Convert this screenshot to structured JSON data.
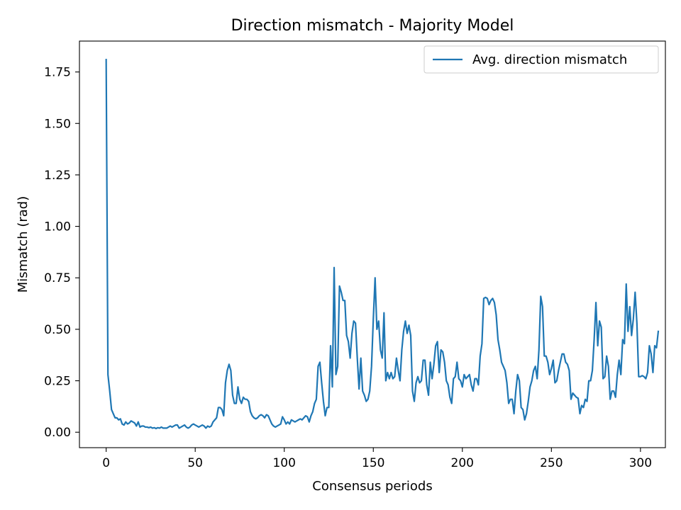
{
  "chart_data": {
    "type": "line",
    "title": "Direction mismatch - Majority Model",
    "xlabel": "Consensus periods",
    "ylabel": "Mismatch (rad)",
    "xlim": [
      -15,
      314
    ],
    "ylim": [
      -0.075,
      1.9
    ],
    "xticks": [
      0,
      50,
      100,
      150,
      200,
      250,
      300
    ],
    "xtick_labels": [
      "0",
      "50",
      "100",
      "150",
      "200",
      "250",
      "300"
    ],
    "yticks": [
      0,
      0.25,
      0.5,
      0.75,
      1.0,
      1.25,
      1.5,
      1.75
    ],
    "ytick_labels": [
      "0.00",
      "0.25",
      "0.50",
      "0.75",
      "1.00",
      "1.25",
      "1.50",
      "1.75"
    ],
    "grid": false,
    "legend": {
      "position": "top-right"
    },
    "series": [
      {
        "name": "Avg. direction mismatch",
        "color": "#1f77b4",
        "x_start": 0,
        "x_step": 1,
        "values": [
          1.81,
          0.28,
          0.2,
          0.11,
          0.09,
          0.07,
          0.07,
          0.06,
          0.065,
          0.04,
          0.035,
          0.05,
          0.04,
          0.045,
          0.055,
          0.05,
          0.045,
          0.03,
          0.05,
          0.025,
          0.03,
          0.03,
          0.025,
          0.025,
          0.022,
          0.025,
          0.02,
          0.022,
          0.018,
          0.022,
          0.02,
          0.025,
          0.02,
          0.02,
          0.02,
          0.025,
          0.03,
          0.025,
          0.03,
          0.035,
          0.035,
          0.02,
          0.025,
          0.03,
          0.035,
          0.025,
          0.02,
          0.025,
          0.035,
          0.04,
          0.035,
          0.03,
          0.025,
          0.03,
          0.035,
          0.03,
          0.02,
          0.03,
          0.025,
          0.03,
          0.05,
          0.06,
          0.07,
          0.12,
          0.12,
          0.11,
          0.08,
          0.24,
          0.3,
          0.33,
          0.3,
          0.18,
          0.14,
          0.14,
          0.22,
          0.16,
          0.14,
          0.17,
          0.16,
          0.16,
          0.15,
          0.1,
          0.08,
          0.07,
          0.065,
          0.07,
          0.08,
          0.085,
          0.08,
          0.07,
          0.085,
          0.08,
          0.06,
          0.04,
          0.03,
          0.025,
          0.03,
          0.035,
          0.04,
          0.075,
          0.06,
          0.04,
          0.05,
          0.04,
          0.06,
          0.055,
          0.05,
          0.055,
          0.06,
          0.065,
          0.06,
          0.07,
          0.08,
          0.075,
          0.05,
          0.08,
          0.1,
          0.14,
          0.16,
          0.32,
          0.34,
          0.24,
          0.15,
          0.08,
          0.12,
          0.12,
          0.42,
          0.22,
          0.8,
          0.28,
          0.32,
          0.71,
          0.68,
          0.64,
          0.64,
          0.47,
          0.44,
          0.36,
          0.48,
          0.54,
          0.53,
          0.36,
          0.21,
          0.36,
          0.2,
          0.18,
          0.15,
          0.16,
          0.2,
          0.32,
          0.55,
          0.75,
          0.5,
          0.54,
          0.4,
          0.36,
          0.58,
          0.25,
          0.29,
          0.26,
          0.29,
          0.26,
          0.27,
          0.36,
          0.3,
          0.25,
          0.4,
          0.49,
          0.54,
          0.48,
          0.52,
          0.47,
          0.2,
          0.15,
          0.24,
          0.27,
          0.24,
          0.25,
          0.35,
          0.35,
          0.23,
          0.18,
          0.34,
          0.26,
          0.33,
          0.42,
          0.44,
          0.29,
          0.4,
          0.39,
          0.34,
          0.25,
          0.23,
          0.17,
          0.14,
          0.26,
          0.27,
          0.34,
          0.26,
          0.25,
          0.22,
          0.28,
          0.26,
          0.27,
          0.28,
          0.23,
          0.2,
          0.26,
          0.26,
          0.23,
          0.37,
          0.43,
          0.65,
          0.655,
          0.65,
          0.62,
          0.64,
          0.65,
          0.63,
          0.57,
          0.45,
          0.4,
          0.34,
          0.32,
          0.3,
          0.24,
          0.14,
          0.16,
          0.16,
          0.09,
          0.2,
          0.28,
          0.25,
          0.12,
          0.11,
          0.06,
          0.09,
          0.15,
          0.22,
          0.25,
          0.3,
          0.32,
          0.26,
          0.4,
          0.66,
          0.61,
          0.37,
          0.37,
          0.34,
          0.28,
          0.31,
          0.35,
          0.24,
          0.25,
          0.3,
          0.34,
          0.38,
          0.38,
          0.34,
          0.33,
          0.3,
          0.16,
          0.19,
          0.18,
          0.17,
          0.165,
          0.09,
          0.13,
          0.12,
          0.16,
          0.15,
          0.25,
          0.25,
          0.3,
          0.45,
          0.63,
          0.42,
          0.54,
          0.51,
          0.26,
          0.27,
          0.37,
          0.32,
          0.16,
          0.2,
          0.2,
          0.17,
          0.28,
          0.35,
          0.28,
          0.45,
          0.43,
          0.72,
          0.49,
          0.61,
          0.47,
          0.55,
          0.68,
          0.53,
          0.27,
          0.27,
          0.275,
          0.27,
          0.26,
          0.29,
          0.42,
          0.38,
          0.29,
          0.42,
          0.41,
          0.49
        ]
      }
    ]
  }
}
